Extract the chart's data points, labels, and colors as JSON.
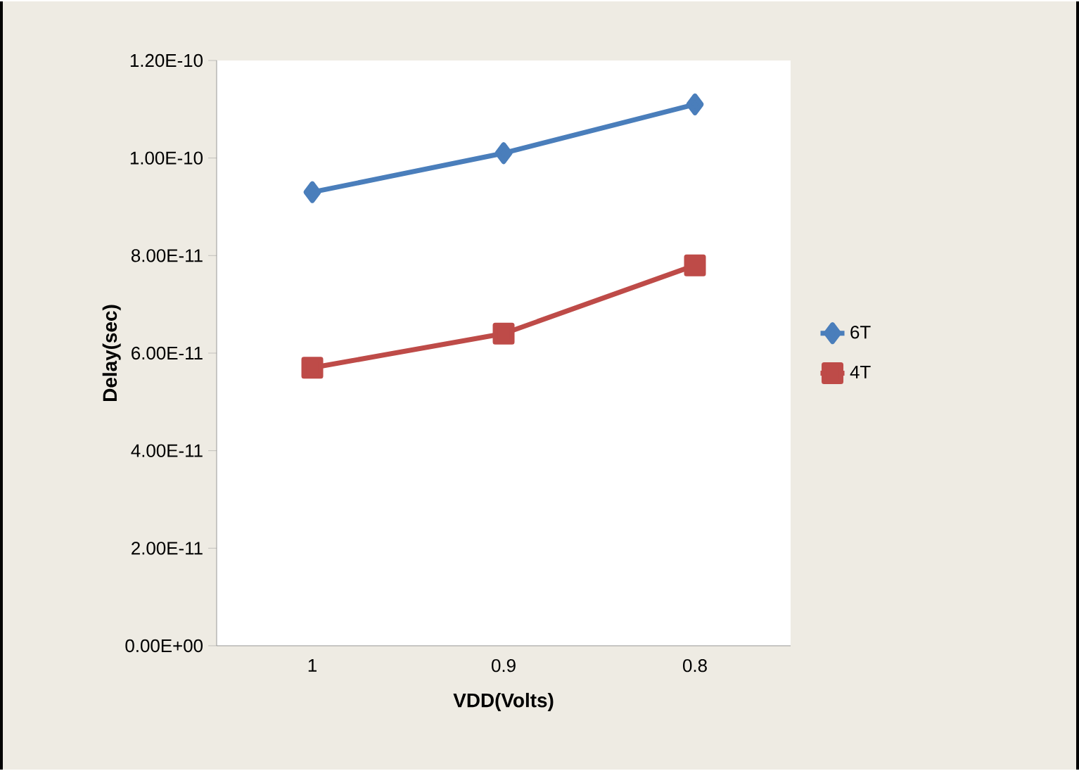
{
  "chart_data": {
    "type": "line",
    "xlabel": "VDD(Volts)",
    "ylabel": "Delay(sec)",
    "categories": [
      "1",
      "0.9",
      "0.8"
    ],
    "series": [
      {
        "name": "6T",
        "color": "#4a7ebb",
        "marker": "diamond",
        "values": [
          9.3e-11,
          1.01e-10,
          1.11e-10
        ]
      },
      {
        "name": "4T",
        "color": "#be4b48",
        "marker": "square",
        "values": [
          5.7e-11,
          6.4e-11,
          7.8e-11
        ]
      }
    ],
    "ylim": [
      0,
      1.2e-10
    ],
    "yticks": [
      {
        "value": 0,
        "label": "0.00E+00"
      },
      {
        "value": 2e-11,
        "label": "2.00E-11"
      },
      {
        "value": 4e-11,
        "label": "4.00E-11"
      },
      {
        "value": 6e-11,
        "label": "6.00E-11"
      },
      {
        "value": 8e-11,
        "label": "8.00E-11"
      },
      {
        "value": 1e-10,
        "label": "1.00E-10"
      },
      {
        "value": 1.2e-10,
        "label": "1.20E-10"
      }
    ],
    "grid": false,
    "legend": "right",
    "line_style": "solid"
  }
}
